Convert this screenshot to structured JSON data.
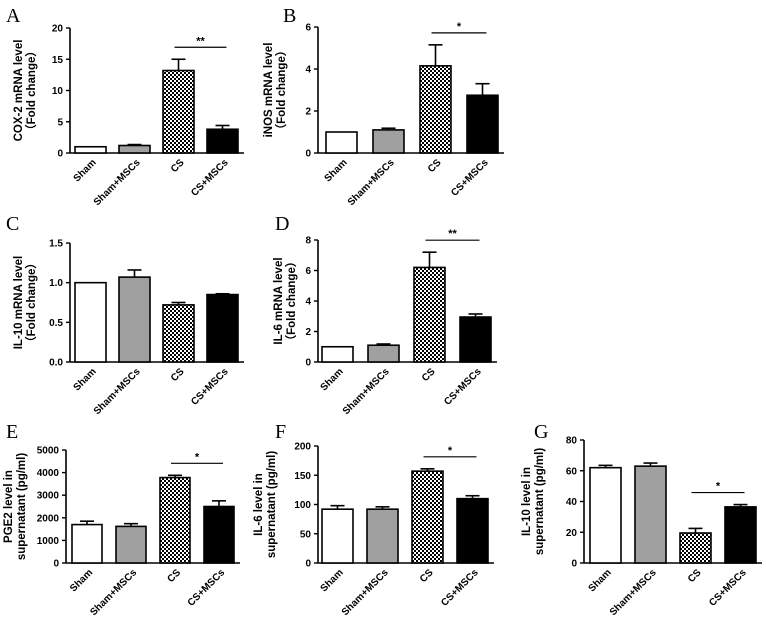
{
  "chart_data": [
    {
      "panel": "A",
      "type": "bar",
      "ylabel": [
        "COX-2 mRNA level",
        "（Fold change）"
      ],
      "categories": [
        "Sham",
        "Sham+MSCs",
        "CS",
        "CS+MSCs"
      ],
      "values": [
        1.0,
        1.2,
        13.2,
        3.8
      ],
      "errors": [
        0.0,
        0.15,
        1.8,
        0.6
      ],
      "ylim": [
        0,
        20
      ],
      "yticks": [
        0,
        5,
        10,
        15,
        20
      ],
      "significance": {
        "from": 2,
        "to": 3,
        "label": "**"
      }
    },
    {
      "panel": "B",
      "type": "bar",
      "ylabel": [
        "iNOS mRNA level",
        "（Fold change）"
      ],
      "categories": [
        "Sham",
        "Sham+MSCs",
        "CS",
        "CS+MSCs"
      ],
      "values": [
        1.0,
        1.1,
        4.15,
        2.75
      ],
      "errors": [
        0.0,
        0.08,
        1.0,
        0.55
      ],
      "ylim": [
        0,
        6
      ],
      "yticks": [
        0,
        2,
        4,
        6
      ],
      "significance": {
        "from": 2,
        "to": 3,
        "label": "*"
      }
    },
    {
      "panel": "C",
      "type": "bar",
      "ylabel": [
        "IL-10 mRNA level",
        "（Fold change）"
      ],
      "categories": [
        "Sham",
        "Sham+MSCs",
        "CS",
        "CS+MSCs"
      ],
      "values": [
        1.0,
        1.07,
        0.72,
        0.85
      ],
      "errors": [
        0.0,
        0.09,
        0.03,
        0.01
      ],
      "ylim": [
        0,
        1.5
      ],
      "yticks": [
        0.0,
        0.5,
        1.0,
        1.5
      ],
      "tick_labels": [
        "0.0",
        "0.5",
        "1.0",
        "1.5"
      ],
      "significance": null
    },
    {
      "panel": "D",
      "type": "bar",
      "ylabel": [
        "IL-6 mRNA level",
        "（Fold change）"
      ],
      "categories": [
        "Sham",
        "Sham+MSCs",
        "CS",
        "CS+MSCs"
      ],
      "values": [
        1.0,
        1.1,
        6.2,
        2.95
      ],
      "errors": [
        0.0,
        0.08,
        1.0,
        0.2
      ],
      "ylim": [
        0,
        8
      ],
      "yticks": [
        0,
        2,
        4,
        6,
        8
      ],
      "significance": {
        "from": 2,
        "to": 3,
        "label": "**"
      }
    },
    {
      "panel": "E",
      "type": "bar",
      "ylabel": [
        "PGE2 level in",
        "supernatant (pg/ml)"
      ],
      "categories": [
        "Sham",
        "Sham+MSCs",
        "CS",
        "CS+MSCs"
      ],
      "values": [
        1700,
        1620,
        3780,
        2500
      ],
      "errors": [
        150,
        120,
        100,
        250
      ],
      "ylim": [
        0,
        5000
      ],
      "yticks": [
        0,
        1000,
        2000,
        3000,
        4000,
        5000
      ],
      "significance": {
        "from": 2,
        "to": 3,
        "label": "*"
      }
    },
    {
      "panel": "F",
      "type": "bar",
      "ylabel": [
        "IL-6 level in",
        "supernatant (pg/ml)"
      ],
      "categories": [
        "Sham",
        "Sham+MSCs",
        "CS",
        "CS+MSCs"
      ],
      "values": [
        92,
        92,
        157,
        110
      ],
      "errors": [
        6,
        4,
        4,
        5
      ],
      "ylim": [
        0,
        200
      ],
      "yticks": [
        0,
        50,
        100,
        150,
        200
      ],
      "significance": {
        "from": 2,
        "to": 3,
        "label": "*"
      }
    },
    {
      "panel": "G",
      "type": "bar",
      "ylabel": [
        "IL-10 level in",
        "supernatant (pg/ml)"
      ],
      "categories": [
        "Sham",
        "Sham+MSCs",
        "CS",
        "CS+MSCs"
      ],
      "values": [
        62,
        63,
        19.5,
        36.5
      ],
      "errors": [
        1.5,
        2,
        3,
        1.5
      ],
      "ylim": [
        0,
        80
      ],
      "yticks": [
        0,
        20,
        40,
        60,
        80
      ],
      "significance": {
        "from": 2,
        "to": 3,
        "label": "*"
      }
    }
  ],
  "styles": {
    "fills": [
      "#ffffff",
      "#a0a0a0",
      "checker",
      "#000000"
    ],
    "axis_color": "#000000"
  }
}
